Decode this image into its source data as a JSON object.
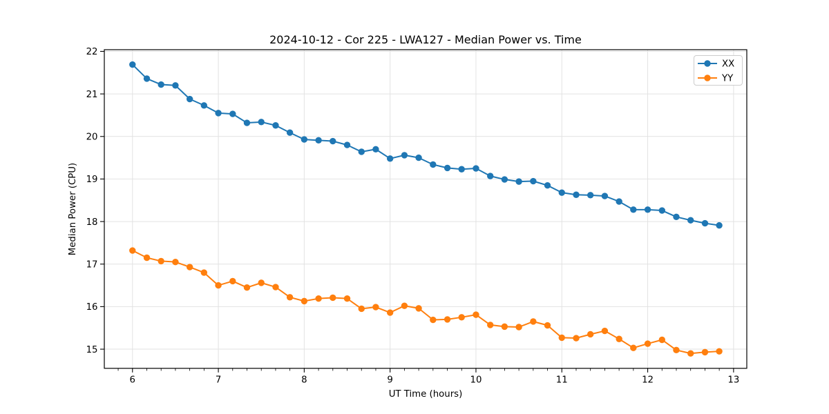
{
  "chart_data": {
    "type": "line",
    "title": "2024-10-12 - Cor 225 - LWA127 - Median Power vs. Time",
    "xlabel": "UT Time (hours)",
    "ylabel": "Median Power (CPU)",
    "xlim": [
      5.672,
      13.154
    ],
    "ylim": [
      14.55,
      22.04
    ],
    "xticks": [
      6,
      7,
      8,
      9,
      10,
      11,
      12,
      13
    ],
    "yticks": [
      15,
      16,
      17,
      18,
      19,
      20,
      21,
      22
    ],
    "x_minor_tick_step": 0.16667,
    "grid": true,
    "grid_color": "#e2e2e2",
    "legend_position": "upper right",
    "x": [
      6.0,
      6.167,
      6.333,
      6.5,
      6.667,
      6.833,
      7.0,
      7.167,
      7.333,
      7.5,
      7.667,
      7.833,
      8.0,
      8.167,
      8.333,
      8.5,
      8.667,
      8.833,
      9.0,
      9.167,
      9.333,
      9.5,
      9.667,
      9.833,
      10.0,
      10.167,
      10.333,
      10.5,
      10.667,
      10.833,
      11.0,
      11.167,
      11.333,
      11.5,
      11.667,
      11.833,
      12.0,
      12.167,
      12.333,
      12.5,
      12.667,
      12.833
    ],
    "series": [
      {
        "name": "XX",
        "color": "#1f77b4",
        "values": [
          21.69,
          21.36,
          21.22,
          21.2,
          20.88,
          20.73,
          20.55,
          20.53,
          20.32,
          20.34,
          20.26,
          20.09,
          19.93,
          19.91,
          19.89,
          19.8,
          19.64,
          19.7,
          19.48,
          19.56,
          19.5,
          19.34,
          19.26,
          19.23,
          19.25,
          19.07,
          18.99,
          18.94,
          18.95,
          18.85,
          18.68,
          18.63,
          18.62,
          18.6,
          18.47,
          18.28,
          18.28,
          18.26,
          18.11,
          18.03,
          17.96,
          17.91
        ]
      },
      {
        "name": "YY",
        "color": "#ff7f0e",
        "values": [
          17.32,
          17.15,
          17.07,
          17.05,
          16.93,
          16.8,
          16.5,
          16.6,
          16.45,
          16.56,
          16.46,
          16.22,
          16.13,
          16.19,
          16.21,
          16.19,
          15.95,
          15.99,
          15.86,
          16.02,
          15.96,
          15.69,
          15.7,
          15.75,
          15.81,
          15.57,
          15.53,
          15.52,
          15.65,
          15.56,
          15.27,
          15.26,
          15.35,
          15.43,
          15.24,
          15.03,
          15.13,
          15.22,
          14.98,
          14.9,
          14.93,
          14.95
        ]
      }
    ]
  }
}
